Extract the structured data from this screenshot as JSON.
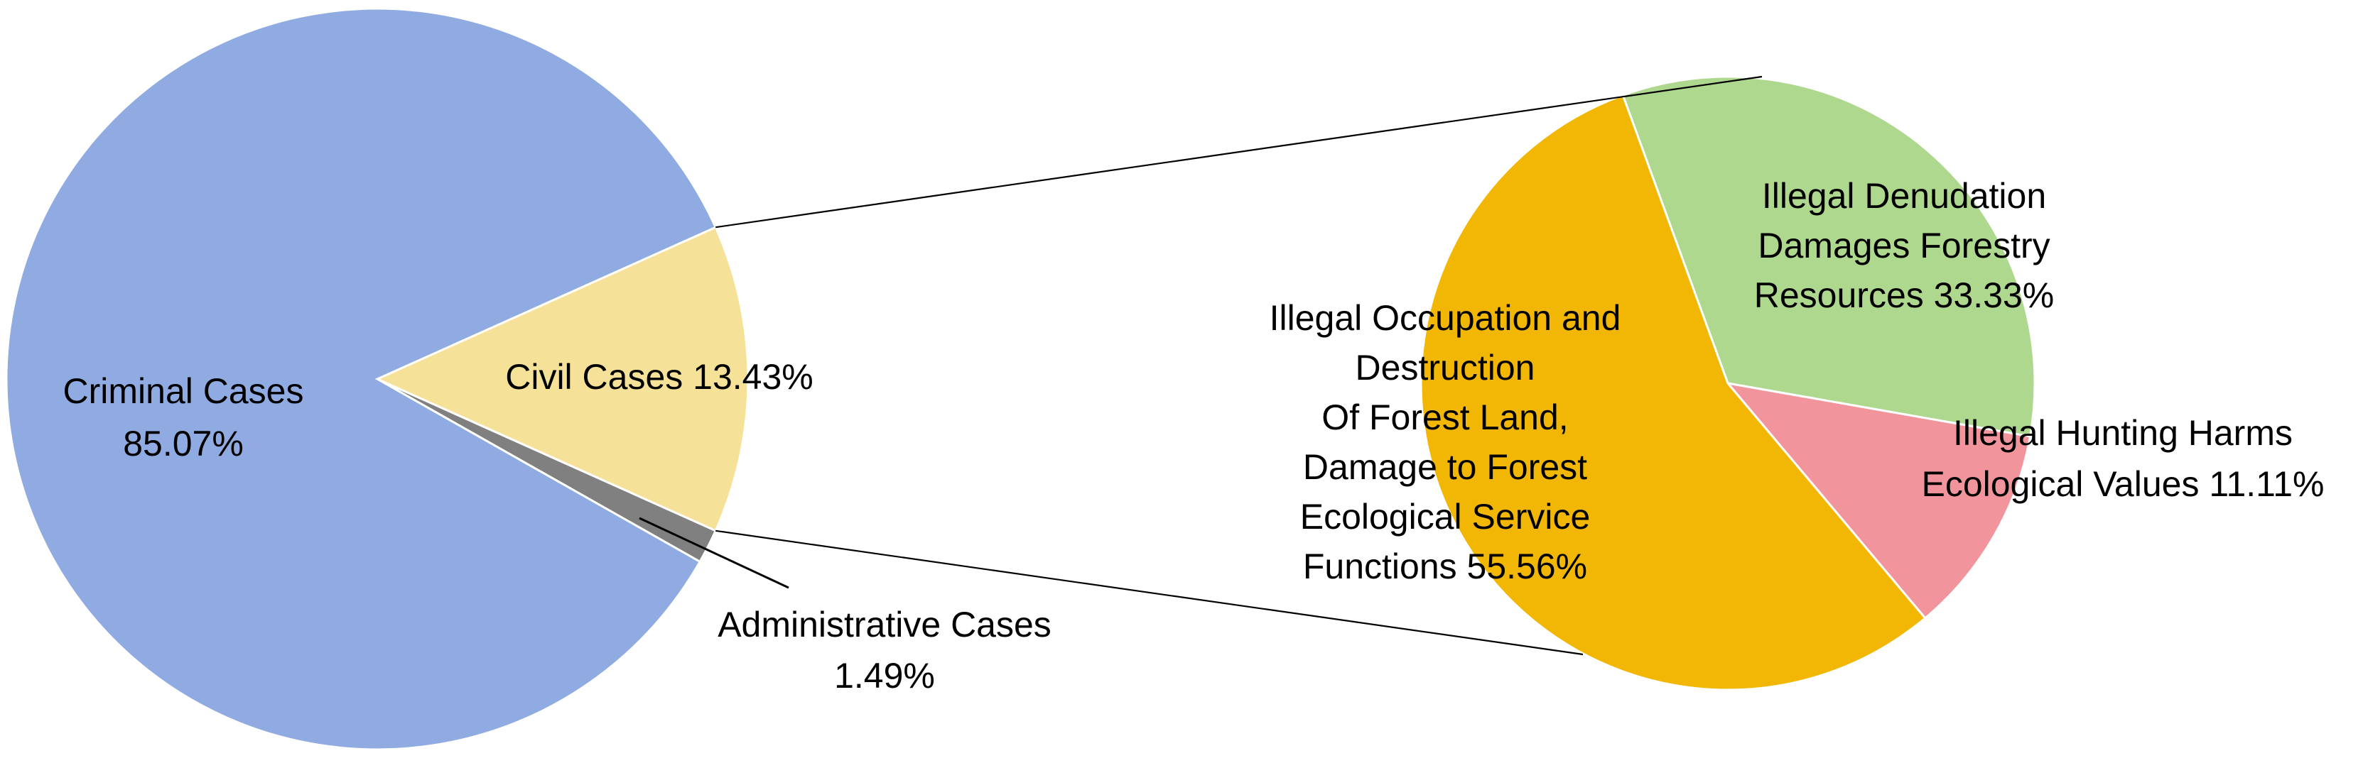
{
  "chart_data": [
    {
      "type": "pie",
      "slices": [
        {
          "label": "Criminal Cases",
          "value_text": "85.07%",
          "value": 85.07,
          "color": "#90aae2"
        },
        {
          "label": "Civil Cases",
          "value_text": "13.43%",
          "value": 13.43,
          "color": "#f6e198"
        },
        {
          "label": "Administrative Cases",
          "value_text": "1.49%",
          "value": 1.49,
          "color": "#808080"
        }
      ]
    },
    {
      "type": "pie",
      "slices": [
        {
          "label": "Illegal Denudation Damages Forestry Resources",
          "value_text": "33.33%",
          "value": 33.33,
          "color": "#afd88f"
        },
        {
          "label": "Illegal Hunting Harms Ecological Values",
          "value_text": "11.11%",
          "value": 11.11,
          "color": "#f2949b"
        },
        {
          "label": "Illegal Occupation and Destruction Of Forest Land, Damage to Forest Ecological Service Functions",
          "value_text": "55.56%",
          "value": 55.56,
          "color": "#f2b705"
        }
      ]
    }
  ],
  "labels": {
    "criminal": [
      "Criminal Cases",
      "85.07%"
    ],
    "civil": [
      "Civil Cases 13.43%"
    ],
    "administrative": [
      "Administrative Cases",
      "1.49%"
    ],
    "denudation": [
      "Illegal Denudation",
      "Damages Forestry",
      "Resources 33.33%"
    ],
    "hunting": [
      "Illegal Hunting Harms",
      "Ecological Values 11.11%"
    ],
    "occupation": [
      "Illegal Occupation and",
      "Destruction",
      "Of Forest Land,",
      "Damage to Forest",
      "Ecological Service",
      "Functions 55.56%"
    ]
  }
}
